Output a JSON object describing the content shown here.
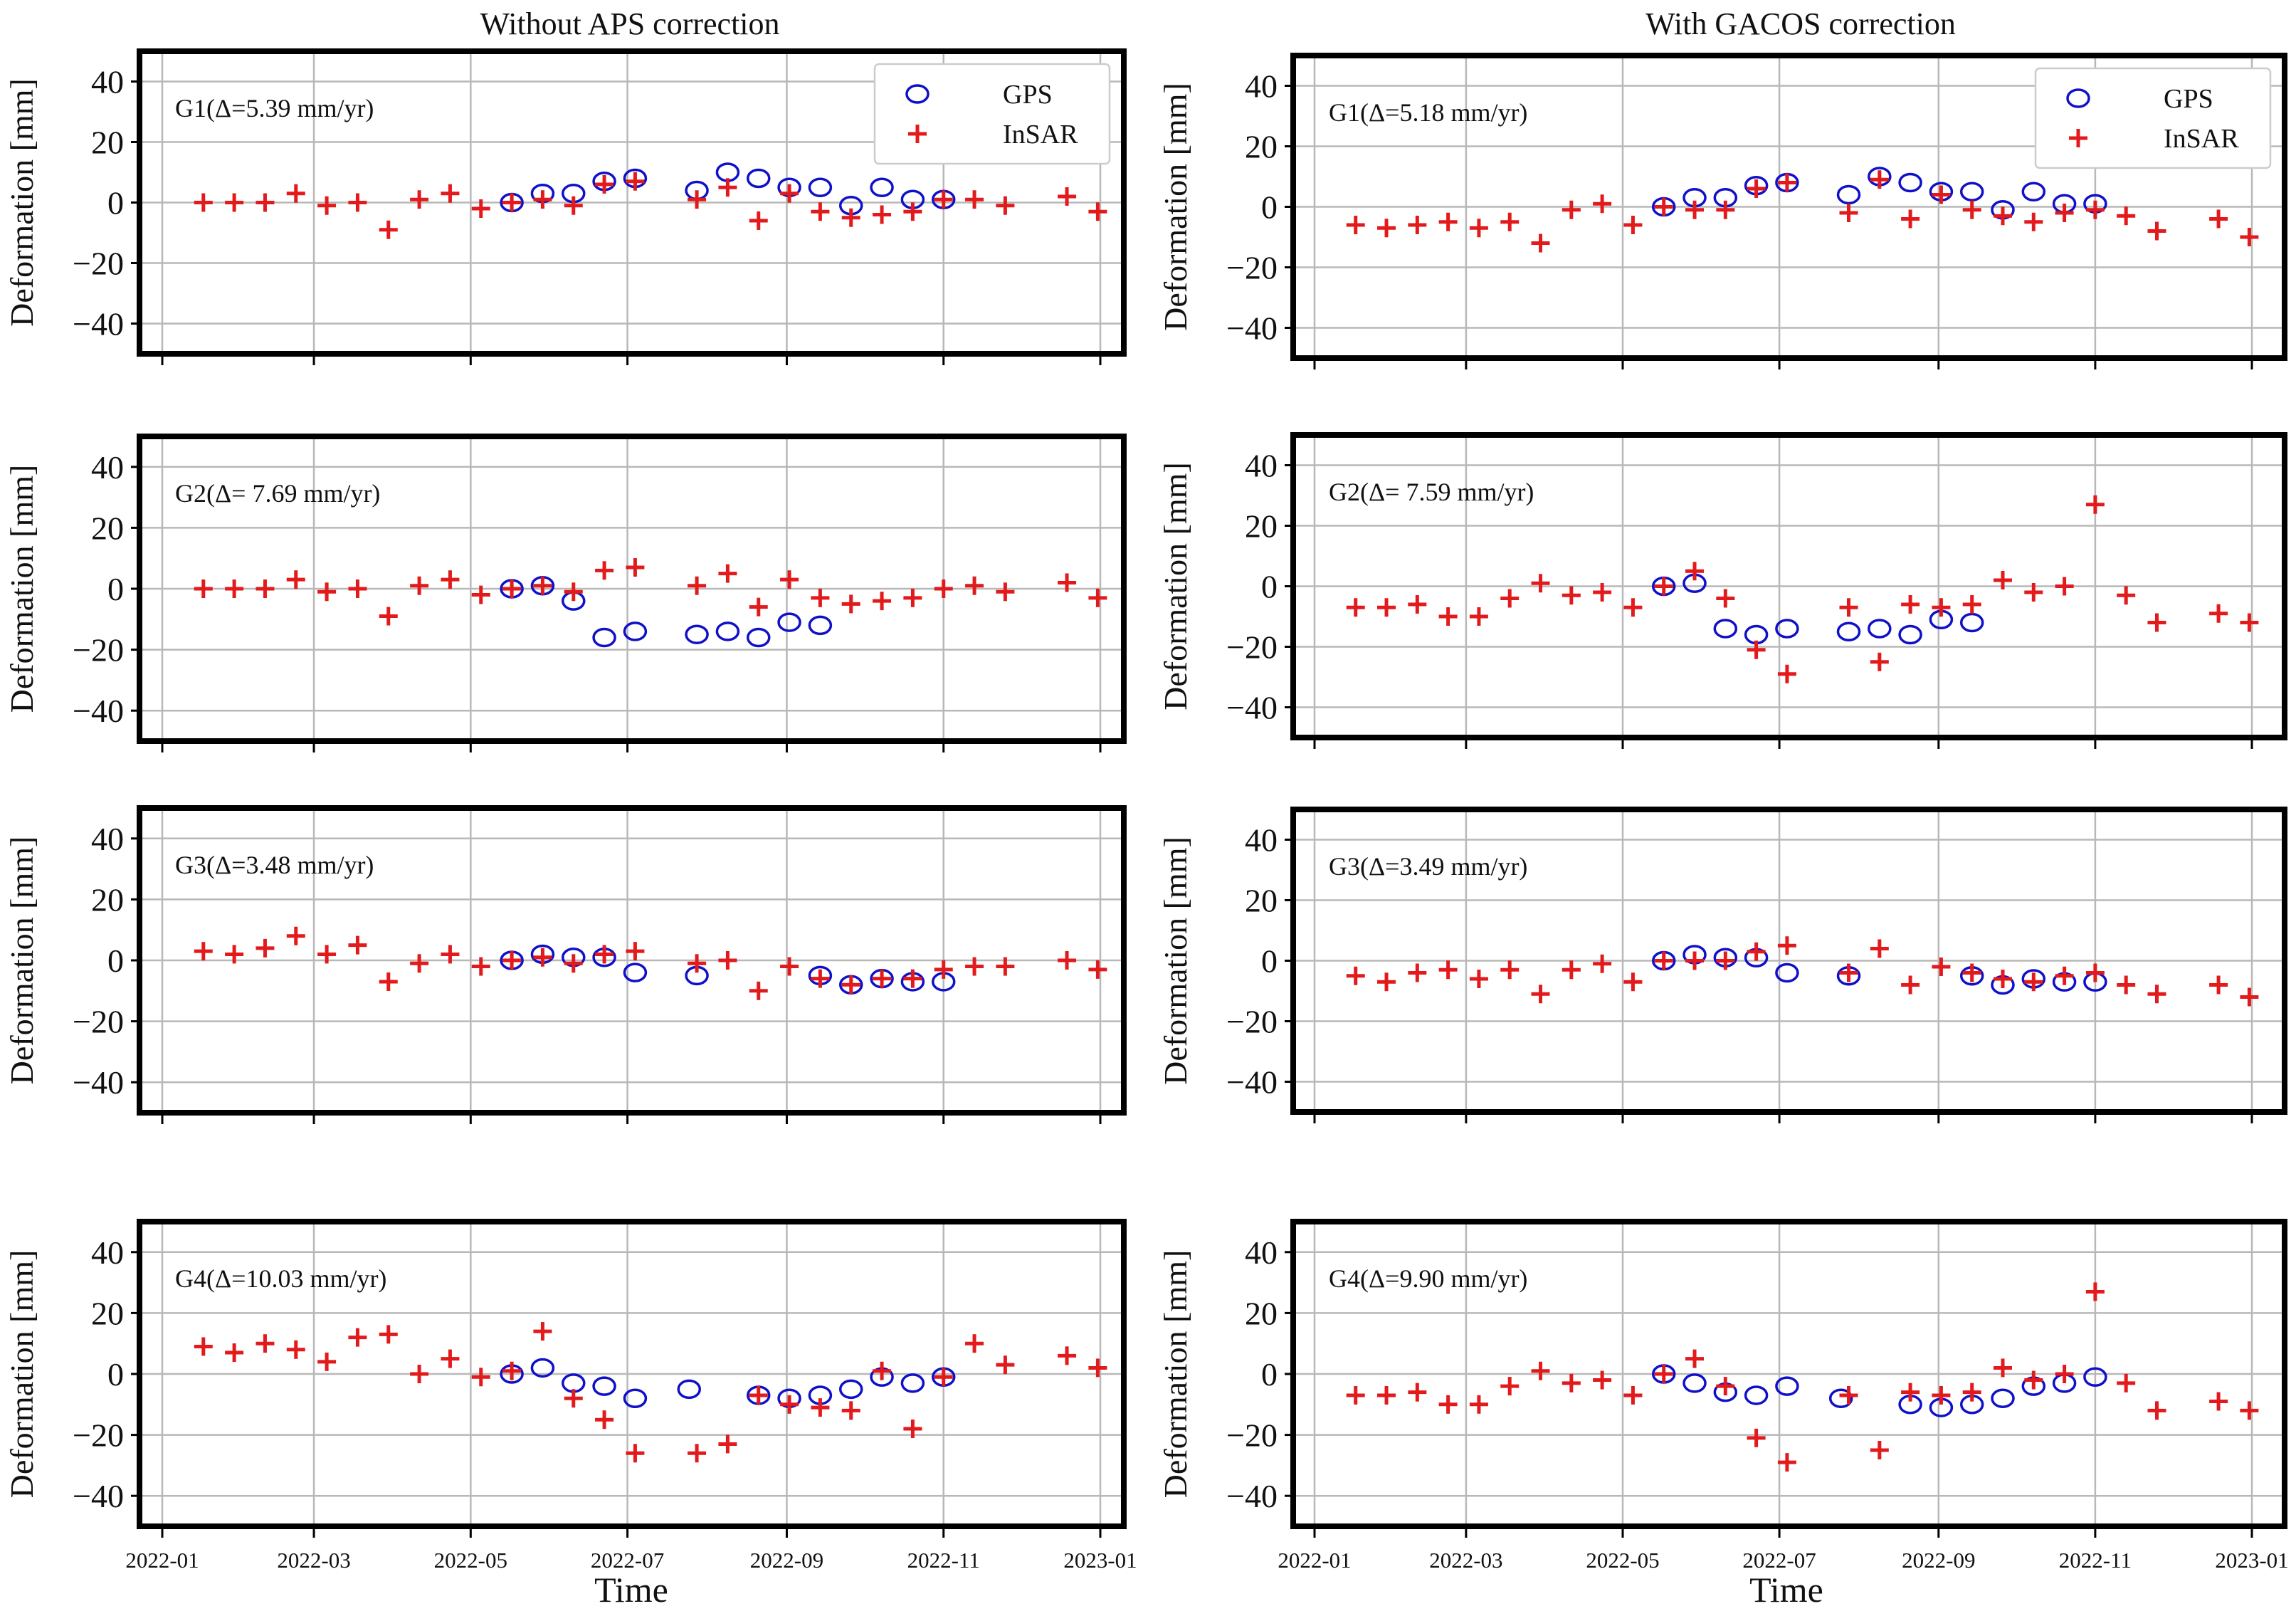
{
  "column_titles": [
    "Without APS correction",
    "With GACOS correction"
  ],
  "x_axis_title": "Time",
  "y_axis_title": "Deformation [mm]",
  "legend": {
    "gps": "GPS",
    "insar": "InSAR"
  },
  "colors": {
    "gps": "#1010c8",
    "insar": "#e31a1c",
    "grid": "#b8b8b8",
    "frame": "#000000"
  },
  "chart_data": {
    "type": "scatter",
    "x_range": [
      "2022-01-01",
      "2023-01-15"
    ],
    "ylim": [
      -50,
      50
    ],
    "yticks": [
      -40,
      -20,
      0,
      20,
      40
    ],
    "xticks": [
      "2022-01",
      "2022-03",
      "2022-05",
      "2022-07",
      "2022-09",
      "2022-11",
      "2023-01"
    ],
    "grid": true,
    "legend_position": "top-right (first row)",
    "panels": [
      {
        "id": "G1-raw",
        "column": "Without APS correction",
        "station": "G1",
        "label": "G1(Δ=5.39 mm/yr)",
        "insar": {
          "dates": [
            "2022-01-17",
            "2022-01-29",
            "2022-02-10",
            "2022-02-22",
            "2022-03-06",
            "2022-03-18",
            "2022-03-30",
            "2022-04-11",
            "2022-04-23",
            "2022-05-05",
            "2022-05-17",
            "2022-05-29",
            "2022-06-10",
            "2022-06-22",
            "2022-07-04",
            "2022-07-28",
            "2022-08-09",
            "2022-08-21",
            "2022-09-02",
            "2022-09-14",
            "2022-09-26",
            "2022-10-08",
            "2022-10-20",
            "2022-11-01",
            "2022-11-13",
            "2022-11-25",
            "2022-12-19",
            "2022-12-31"
          ],
          "values": [
            0,
            0,
            0,
            3,
            -1,
            0,
            -9,
            1,
            3,
            -2,
            0,
            1,
            -1,
            6,
            7,
            1,
            5,
            -6,
            3,
            -3,
            -5,
            -4,
            -3,
            1,
            1,
            -1,
            2,
            -3
          ]
        },
        "gps": {
          "dates": [
            "2022-05-17",
            "2022-05-29",
            "2022-06-10",
            "2022-06-22",
            "2022-07-04",
            "2022-07-28",
            "2022-08-09",
            "2022-08-21",
            "2022-09-02",
            "2022-09-14",
            "2022-09-26",
            "2022-10-08",
            "2022-10-20",
            "2022-11-01"
          ],
          "values": [
            0,
            3,
            3,
            7,
            8,
            4,
            10,
            8,
            5,
            5,
            -1,
            5,
            1,
            1
          ]
        }
      },
      {
        "id": "G1-gacos",
        "column": "With GACOS correction",
        "station": "G1",
        "label": "G1(Δ=5.18 mm/yr)",
        "insar": {
          "dates": [
            "2022-01-17",
            "2022-01-29",
            "2022-02-10",
            "2022-02-22",
            "2022-03-06",
            "2022-03-18",
            "2022-03-30",
            "2022-04-11",
            "2022-04-23",
            "2022-05-05",
            "2022-05-17",
            "2022-05-29",
            "2022-06-10",
            "2022-06-22",
            "2022-07-04",
            "2022-07-28",
            "2022-08-09",
            "2022-08-21",
            "2022-09-02",
            "2022-09-14",
            "2022-09-26",
            "2022-10-08",
            "2022-10-20",
            "2022-11-01",
            "2022-11-13",
            "2022-11-25",
            "2022-12-19",
            "2022-12-31"
          ],
          "values": [
            -6,
            -7,
            -6,
            -5,
            -7,
            -5,
            -12,
            -1,
            1,
            -6,
            0,
            -1,
            -1,
            6,
            8,
            -2,
            9,
            -4,
            4,
            -1,
            -3,
            -5,
            -2,
            -1,
            -3,
            -8,
            -4,
            -10
          ]
        },
        "gps": {
          "dates": [
            "2022-05-17",
            "2022-05-29",
            "2022-06-10",
            "2022-06-22",
            "2022-07-04",
            "2022-07-28",
            "2022-08-09",
            "2022-08-21",
            "2022-09-02",
            "2022-09-14",
            "2022-09-26",
            "2022-10-08",
            "2022-10-20",
            "2022-11-01"
          ],
          "values": [
            0,
            3,
            3,
            7,
            8,
            4,
            10,
            8,
            5,
            5,
            -1,
            5,
            1,
            1
          ]
        }
      },
      {
        "id": "G2-raw",
        "column": "Without APS correction",
        "station": "G2",
        "label": "G2(Δ= 7.69 mm/yr)",
        "insar": {
          "dates": [
            "2022-01-17",
            "2022-01-29",
            "2022-02-10",
            "2022-02-22",
            "2022-03-06",
            "2022-03-18",
            "2022-03-30",
            "2022-04-11",
            "2022-04-23",
            "2022-05-05",
            "2022-05-17",
            "2022-05-29",
            "2022-06-10",
            "2022-06-22",
            "2022-07-04",
            "2022-07-28",
            "2022-08-09",
            "2022-08-21",
            "2022-09-02",
            "2022-09-14",
            "2022-09-26",
            "2022-10-08",
            "2022-10-20",
            "2022-11-01",
            "2022-11-13",
            "2022-11-25",
            "2022-12-19",
            "2022-12-31"
          ],
          "values": [
            0,
            0,
            0,
            3,
            -1,
            0,
            -9,
            1,
            3,
            -2,
            0,
            1,
            -1,
            6,
            7,
            1,
            5,
            -6,
            3,
            -3,
            -5,
            -4,
            -3,
            0,
            1,
            -1,
            2,
            -3
          ]
        },
        "gps": {
          "dates": [
            "2022-05-17",
            "2022-05-29",
            "2022-06-10",
            "2022-06-22",
            "2022-07-04",
            "2022-07-28",
            "2022-08-09",
            "2022-08-21",
            "2022-09-02",
            "2022-09-14"
          ],
          "values": [
            0,
            1,
            -4,
            -16,
            -14,
            -15,
            -14,
            -16,
            -11,
            -12
          ]
        }
      },
      {
        "id": "G2-gacos",
        "column": "With GACOS correction",
        "station": "G2",
        "label": "G2(Δ= 7.59 mm/yr)",
        "insar": {
          "dates": [
            "2022-01-17",
            "2022-01-29",
            "2022-02-10",
            "2022-02-22",
            "2022-03-06",
            "2022-03-18",
            "2022-03-30",
            "2022-04-11",
            "2022-04-23",
            "2022-05-05",
            "2022-05-17",
            "2022-05-29",
            "2022-06-10",
            "2022-06-22",
            "2022-07-04",
            "2022-07-28",
            "2022-08-09",
            "2022-08-21",
            "2022-09-02",
            "2022-09-14",
            "2022-09-26",
            "2022-10-08",
            "2022-10-20",
            "2022-11-01",
            "2022-11-13",
            "2022-11-25",
            "2022-12-19",
            "2022-12-31"
          ],
          "values": [
            -7,
            -7,
            -6,
            -10,
            -10,
            -4,
            1,
            -3,
            -2,
            -7,
            0,
            5,
            -4,
            -21,
            -29,
            -7,
            -25,
            -6,
            -7,
            -6,
            2,
            -2,
            0,
            27,
            -3,
            -12,
            -9,
            -12
          ]
        },
        "gps": {
          "dates": [
            "2022-05-17",
            "2022-05-29",
            "2022-06-10",
            "2022-06-22",
            "2022-07-04",
            "2022-07-28",
            "2022-08-09",
            "2022-08-21",
            "2022-09-02",
            "2022-09-14"
          ],
          "values": [
            0,
            1,
            -14,
            -16,
            -14,
            -15,
            -14,
            -16,
            -11,
            -12
          ]
        }
      },
      {
        "id": "G3-raw",
        "column": "Without APS correction",
        "station": "G3",
        "label": "G3(Δ=3.48 mm/yr)",
        "insar": {
          "dates": [
            "2022-01-17",
            "2022-01-29",
            "2022-02-10",
            "2022-02-22",
            "2022-03-06",
            "2022-03-18",
            "2022-03-30",
            "2022-04-11",
            "2022-04-23",
            "2022-05-05",
            "2022-05-17",
            "2022-05-29",
            "2022-06-10",
            "2022-06-22",
            "2022-07-04",
            "2022-07-28",
            "2022-08-09",
            "2022-08-21",
            "2022-09-02",
            "2022-09-14",
            "2022-09-26",
            "2022-10-08",
            "2022-10-20",
            "2022-11-01",
            "2022-11-13",
            "2022-11-25",
            "2022-12-19",
            "2022-12-31"
          ],
          "values": [
            3,
            2,
            4,
            8,
            2,
            5,
            -7,
            -1,
            2,
            -2,
            0,
            1,
            -1,
            2,
            3,
            -1,
            0,
            -10,
            -2,
            -6,
            -8,
            -6,
            -6,
            -3,
            -2,
            -2,
            0,
            -3
          ]
        },
        "gps": {
          "dates": [
            "2022-05-17",
            "2022-05-29",
            "2022-06-10",
            "2022-06-22",
            "2022-07-04",
            "2022-07-28",
            "2022-09-14",
            "2022-09-26",
            "2022-10-08",
            "2022-10-20",
            "2022-11-01"
          ],
          "values": [
            0,
            2,
            1,
            1,
            -4,
            -5,
            -5,
            -8,
            -6,
            -7,
            -7
          ]
        }
      },
      {
        "id": "G3-gacos",
        "column": "With GACOS correction",
        "station": "G3",
        "label": "G3(Δ=3.49 mm/yr)",
        "insar": {
          "dates": [
            "2022-01-17",
            "2022-01-29",
            "2022-02-10",
            "2022-02-22",
            "2022-03-06",
            "2022-03-18",
            "2022-03-30",
            "2022-04-11",
            "2022-04-23",
            "2022-05-05",
            "2022-05-17",
            "2022-05-29",
            "2022-06-10",
            "2022-06-22",
            "2022-07-04",
            "2022-07-28",
            "2022-08-09",
            "2022-08-21",
            "2022-09-02",
            "2022-09-14",
            "2022-09-26",
            "2022-10-08",
            "2022-10-20",
            "2022-11-01",
            "2022-11-13",
            "2022-11-25",
            "2022-12-19",
            "2022-12-31"
          ],
          "values": [
            -5,
            -7,
            -4,
            -3,
            -6,
            -3,
            -11,
            -3,
            -1,
            -7,
            0,
            0,
            0,
            3,
            5,
            -4,
            4,
            -8,
            -2,
            -4,
            -6,
            -7,
            -5,
            -4,
            -8,
            -11,
            -8,
            -12
          ]
        },
        "gps": {
          "dates": [
            "2022-05-17",
            "2022-05-29",
            "2022-06-10",
            "2022-06-22",
            "2022-07-04",
            "2022-07-28",
            "2022-09-14",
            "2022-09-26",
            "2022-10-08",
            "2022-10-20",
            "2022-11-01"
          ],
          "values": [
            0,
            2,
            1,
            1,
            -4,
            -5,
            -5,
            -8,
            -6,
            -7,
            -7
          ]
        }
      },
      {
        "id": "G4-raw",
        "column": "Without APS correction",
        "station": "G4",
        "label": "G4(Δ=10.03 mm/yr)",
        "insar": {
          "dates": [
            "2022-01-17",
            "2022-01-29",
            "2022-02-10",
            "2022-02-22",
            "2022-03-06",
            "2022-03-18",
            "2022-03-30",
            "2022-04-11",
            "2022-04-23",
            "2022-05-05",
            "2022-05-17",
            "2022-05-29",
            "2022-06-10",
            "2022-06-22",
            "2022-07-04",
            "2022-07-28",
            "2022-08-09",
            "2022-08-21",
            "2022-09-02",
            "2022-09-14",
            "2022-09-26",
            "2022-10-08",
            "2022-10-20",
            "2022-11-01",
            "2022-11-13",
            "2022-11-25",
            "2022-12-19",
            "2022-12-31"
          ],
          "values": [
            9,
            7,
            10,
            8,
            4,
            12,
            13,
            0,
            5,
            -1,
            1,
            14,
            -8,
            -15,
            -26,
            -26,
            -23,
            -7,
            -10,
            -11,
            -12,
            1,
            -18,
            -1,
            10,
            3,
            6,
            2
          ]
        },
        "gps": {
          "dates": [
            "2022-05-17",
            "2022-05-29",
            "2022-06-10",
            "2022-06-22",
            "2022-07-04",
            "2022-07-25",
            "2022-08-21",
            "2022-09-02",
            "2022-09-14",
            "2022-09-26",
            "2022-10-08",
            "2022-10-20",
            "2022-11-01"
          ],
          "values": [
            0,
            2,
            -3,
            -4,
            -8,
            -5,
            -7,
            -8,
            -7,
            -5,
            -1,
            -3,
            -1
          ]
        }
      },
      {
        "id": "G4-gacos",
        "column": "With GACOS correction",
        "station": "G4",
        "label": "G4(Δ=9.90 mm/yr)",
        "insar": {
          "dates": [
            "2022-01-17",
            "2022-01-29",
            "2022-02-10",
            "2022-02-22",
            "2022-03-06",
            "2022-03-18",
            "2022-03-30",
            "2022-04-11",
            "2022-04-23",
            "2022-05-05",
            "2022-05-17",
            "2022-05-29",
            "2022-06-10",
            "2022-06-22",
            "2022-07-04",
            "2022-07-28",
            "2022-08-09",
            "2022-08-21",
            "2022-09-02",
            "2022-09-14",
            "2022-09-26",
            "2022-10-08",
            "2022-10-20",
            "2022-11-01",
            "2022-11-13",
            "2022-11-25",
            "2022-12-19",
            "2022-12-31"
          ],
          "values": [
            -7,
            -7,
            -6,
            -10,
            -10,
            -4,
            1,
            -3,
            -2,
            -7,
            0,
            5,
            -4,
            -21,
            -29,
            -7,
            -25,
            -6,
            -7,
            -6,
            2,
            -2,
            0,
            27,
            -3,
            -12,
            -9,
            -12
          ]
        },
        "gps": {
          "dates": [
            "2022-05-17",
            "2022-05-29",
            "2022-06-10",
            "2022-06-22",
            "2022-07-04",
            "2022-07-25",
            "2022-08-21",
            "2022-09-02",
            "2022-09-14",
            "2022-09-26",
            "2022-10-08",
            "2022-10-20",
            "2022-11-01"
          ],
          "values": [
            0,
            -3,
            -6,
            -7,
            -4,
            -8,
            -10,
            -11,
            -10,
            -8,
            -4,
            -3,
            -1
          ]
        }
      }
    ]
  }
}
